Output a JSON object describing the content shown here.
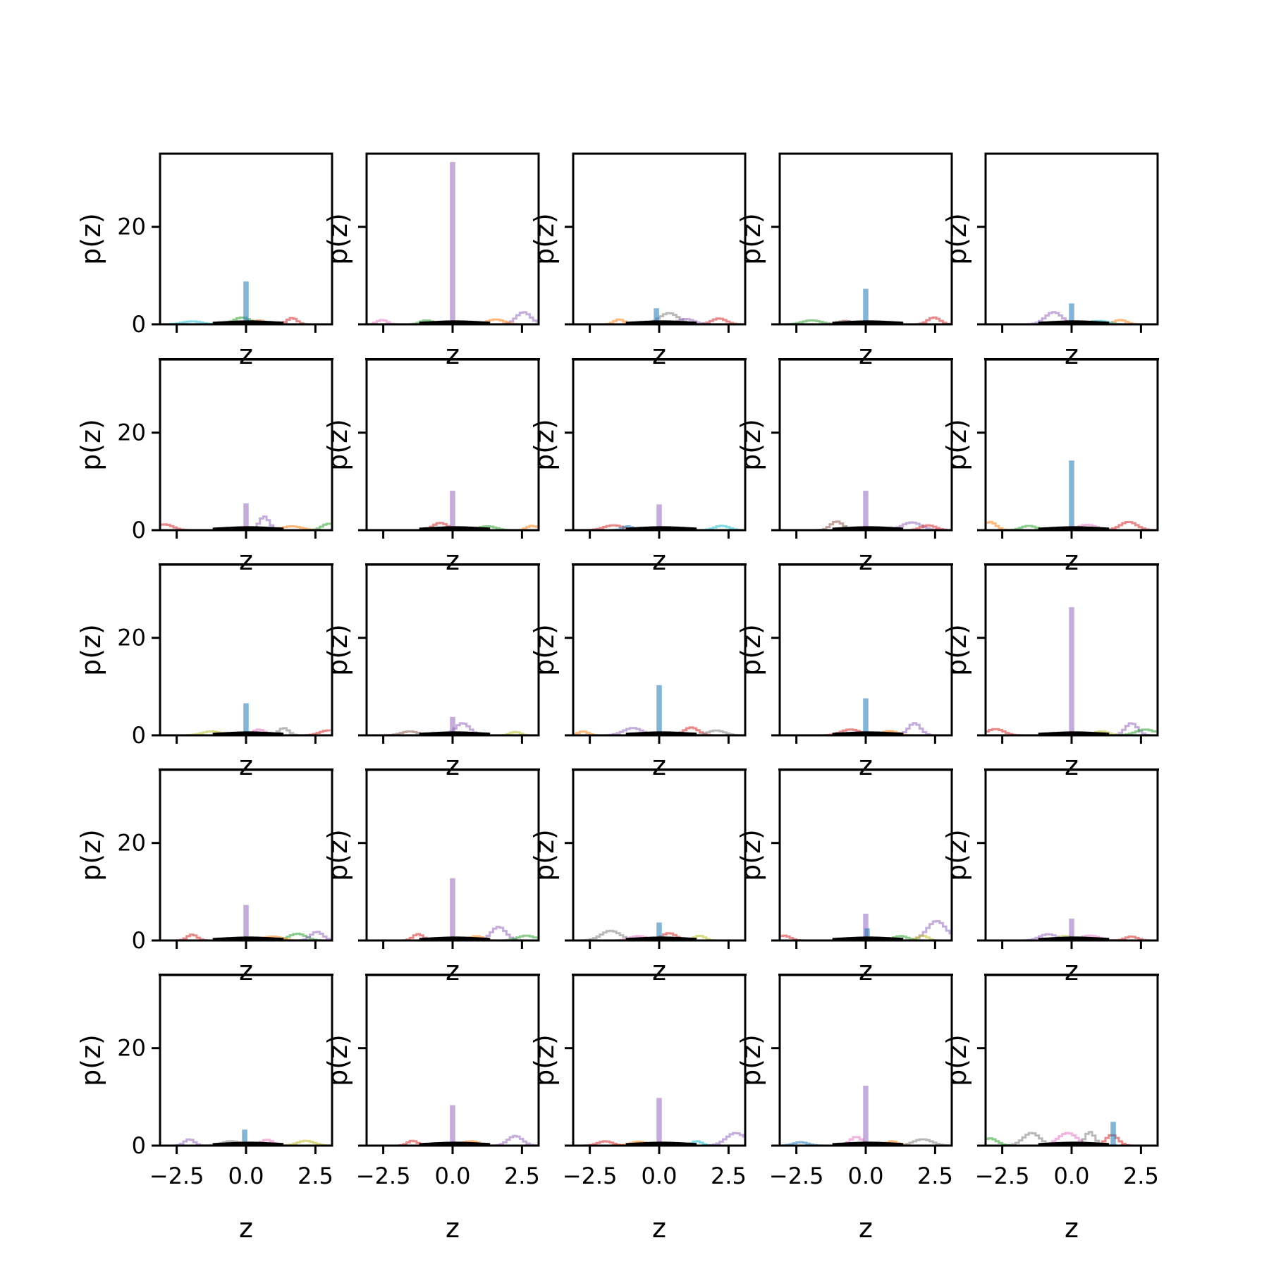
{
  "chart_data": {
    "type": "line",
    "layout": {
      "rows": 5,
      "cols": 5
    },
    "xlabel": "z",
    "ylabel": "p(z)",
    "xlim": [
      -3.1,
      3.1
    ],
    "ylim": [
      0,
      35
    ],
    "xticks": [
      -2.5,
      0.0,
      2.5
    ],
    "xtick_labels": [
      "−2.5",
      "0.0",
      "2.5"
    ],
    "yticks": [
      0,
      20
    ],
    "ytick_labels": [
      "0",
      "20"
    ],
    "colors": {
      "blue": "#1f77b4",
      "orange": "#ff7f0e",
      "green": "#2ca02c",
      "red": "#d62728",
      "purple": "#9467bd",
      "brown": "#8c564b",
      "pink": "#e377c2",
      "gray": "#7f7f7f",
      "olive": "#bcbd22",
      "cyan": "#17becf",
      "black": "#000000"
    },
    "panels": [
      {
        "spikes": [
          {
            "c": "blue",
            "x": 0.0,
            "h": 8.5
          }
        ],
        "bumps": [
          {
            "c": "red",
            "x": 1.6,
            "h": 1.3
          },
          {
            "c": "green",
            "x": -0.2,
            "h": 1.4
          },
          {
            "c": "orange",
            "x": 0.4,
            "h": 0.8
          },
          {
            "c": "cyan",
            "x": -2.0,
            "h": 0.6
          }
        ]
      },
      {
        "spikes": [
          {
            "c": "purple",
            "x": 0.0,
            "h": 33.0
          }
        ],
        "bumps": [
          {
            "c": "purple",
            "x": 2.5,
            "h": 2.5
          },
          {
            "c": "pink",
            "x": -2.6,
            "h": 0.9
          },
          {
            "c": "orange",
            "x": 1.5,
            "h": 1.0
          },
          {
            "c": "green",
            "x": -1.0,
            "h": 0.8
          }
        ]
      },
      {
        "spikes": [
          {
            "c": "blue",
            "x": -0.1,
            "h": 3.0
          }
        ],
        "bumps": [
          {
            "c": "gray",
            "x": 0.3,
            "h": 2.3
          },
          {
            "c": "red",
            "x": 2.1,
            "h": 1.2
          },
          {
            "c": "orange",
            "x": -1.5,
            "h": 1.0
          },
          {
            "c": "purple",
            "x": 0.9,
            "h": 1.1
          }
        ]
      },
      {
        "spikes": [
          {
            "c": "blue",
            "x": 0.0,
            "h": 7.0
          }
        ],
        "bumps": [
          {
            "c": "red",
            "x": 2.4,
            "h": 1.4
          },
          {
            "c": "green",
            "x": -2.0,
            "h": 0.8
          },
          {
            "c": "brown",
            "x": -0.8,
            "h": 0.7
          }
        ]
      },
      {
        "spikes": [
          {
            "c": "blue",
            "x": 0.0,
            "h": 4.0
          }
        ],
        "bumps": [
          {
            "c": "purple",
            "x": -0.7,
            "h": 2.5
          },
          {
            "c": "orange",
            "x": 1.7,
            "h": 0.9
          },
          {
            "c": "cyan",
            "x": 0.9,
            "h": 0.7
          }
        ]
      },
      {
        "spikes": [
          {
            "c": "purple",
            "x": 0.0,
            "h": 5.2
          }
        ],
        "bumps": [
          {
            "c": "purple",
            "x": 0.6,
            "h": 2.8
          },
          {
            "c": "red",
            "x": -3.0,
            "h": 1.2
          },
          {
            "c": "green",
            "x": 2.9,
            "h": 1.3
          },
          {
            "c": "orange",
            "x": 1.6,
            "h": 0.8
          }
        ]
      },
      {
        "spikes": [
          {
            "c": "purple",
            "x": 0.0,
            "h": 7.8
          }
        ],
        "bumps": [
          {
            "c": "red",
            "x": -0.5,
            "h": 1.5
          },
          {
            "c": "orange",
            "x": 2.8,
            "h": 0.9
          },
          {
            "c": "green",
            "x": 1.2,
            "h": 0.8
          }
        ]
      },
      {
        "spikes": [
          {
            "c": "purple",
            "x": 0.0,
            "h": 5.0
          }
        ],
        "bumps": [
          {
            "c": "red",
            "x": -1.7,
            "h": 1.0
          },
          {
            "c": "cyan",
            "x": 2.2,
            "h": 0.9
          },
          {
            "c": "blue",
            "x": -1.2,
            "h": 0.8
          }
        ]
      },
      {
        "spikes": [
          {
            "c": "purple",
            "x": 0.0,
            "h": 7.8
          }
        ],
        "bumps": [
          {
            "c": "brown",
            "x": -1.1,
            "h": 1.8
          },
          {
            "c": "purple",
            "x": 1.6,
            "h": 1.6
          },
          {
            "c": "red",
            "x": 2.2,
            "h": 1.0
          }
        ]
      },
      {
        "spikes": [
          {
            "c": "blue",
            "x": 0.0,
            "h": 14.0
          }
        ],
        "bumps": [
          {
            "c": "red",
            "x": 2.0,
            "h": 1.7
          },
          {
            "c": "orange",
            "x": -3.0,
            "h": 1.7
          },
          {
            "c": "pink",
            "x": 0.5,
            "h": 1.1
          },
          {
            "c": "green",
            "x": -1.6,
            "h": 0.9
          }
        ]
      },
      {
        "spikes": [
          {
            "c": "blue",
            "x": 0.0,
            "h": 6.3
          }
        ],
        "bumps": [
          {
            "c": "gray",
            "x": 1.3,
            "h": 1.5
          },
          {
            "c": "red",
            "x": 2.9,
            "h": 1.0
          },
          {
            "c": "pink",
            "x": 0.4,
            "h": 1.2
          },
          {
            "c": "olive",
            "x": -1.3,
            "h": 0.8
          }
        ]
      },
      {
        "spikes": [
          {
            "c": "purple",
            "x": 0.0,
            "h": 3.5
          }
        ],
        "bumps": [
          {
            "c": "purple",
            "x": 0.3,
            "h": 2.5
          },
          {
            "c": "olive",
            "x": 2.2,
            "h": 0.7
          },
          {
            "c": "brown",
            "x": -1.6,
            "h": 0.8
          }
        ]
      },
      {
        "spikes": [
          {
            "c": "blue",
            "x": 0.0,
            "h": 10.0
          }
        ],
        "bumps": [
          {
            "c": "purple",
            "x": -1.0,
            "h": 1.5
          },
          {
            "c": "red",
            "x": 1.1,
            "h": 1.6
          },
          {
            "c": "orange",
            "x": -2.8,
            "h": 0.8
          },
          {
            "c": "gray",
            "x": 2.0,
            "h": 1.0
          }
        ]
      },
      {
        "spikes": [
          {
            "c": "blue",
            "x": 0.0,
            "h": 7.3
          }
        ],
        "bumps": [
          {
            "c": "purple",
            "x": 1.7,
            "h": 2.5
          },
          {
            "c": "red",
            "x": -0.6,
            "h": 1.2
          },
          {
            "c": "orange",
            "x": 0.8,
            "h": 0.9
          }
        ]
      },
      {
        "spikes": [
          {
            "c": "purple",
            "x": 0.0,
            "h": 26.0
          }
        ],
        "bumps": [
          {
            "c": "red",
            "x": -2.8,
            "h": 1.3
          },
          {
            "c": "purple",
            "x": 2.1,
            "h": 2.5
          },
          {
            "c": "green",
            "x": 2.6,
            "h": 1.2
          },
          {
            "c": "olive",
            "x": 1.0,
            "h": 0.8
          }
        ]
      },
      {
        "spikes": [
          {
            "c": "purple",
            "x": 0.0,
            "h": 7.0
          }
        ],
        "bumps": [
          {
            "c": "red",
            "x": -2.0,
            "h": 1.2
          },
          {
            "c": "green",
            "x": 1.8,
            "h": 1.4
          },
          {
            "c": "purple",
            "x": 2.5,
            "h": 1.8
          },
          {
            "c": "orange",
            "x": 0.9,
            "h": 0.8
          }
        ]
      },
      {
        "spikes": [
          {
            "c": "purple",
            "x": 0.0,
            "h": 12.5
          }
        ],
        "bumps": [
          {
            "c": "purple",
            "x": 1.6,
            "h": 2.8
          },
          {
            "c": "red",
            "x": -1.3,
            "h": 1.3
          },
          {
            "c": "green",
            "x": 2.6,
            "h": 1.0
          },
          {
            "c": "orange",
            "x": 0.8,
            "h": 0.9
          }
        ]
      },
      {
        "spikes": [
          {
            "c": "blue",
            "x": 0.0,
            "h": 3.4
          }
        ],
        "bumps": [
          {
            "c": "gray",
            "x": -1.8,
            "h": 2.0
          },
          {
            "c": "red",
            "x": 0.3,
            "h": 1.5
          },
          {
            "c": "olive",
            "x": 1.4,
            "h": 1.0
          },
          {
            "c": "pink",
            "x": -0.8,
            "h": 0.9
          }
        ]
      },
      {
        "spikes": [
          {
            "c": "purple",
            "x": 0.0,
            "h": 5.2
          },
          {
            "c": "blue",
            "x": 0.05,
            "h": 2.2
          }
        ],
        "bumps": [
          {
            "c": "red",
            "x": -3.0,
            "h": 1.0
          },
          {
            "c": "purple",
            "x": 2.5,
            "h": 4.0
          },
          {
            "c": "green",
            "x": 1.2,
            "h": 0.9
          },
          {
            "c": "olive",
            "x": 2.0,
            "h": 1.0
          }
        ]
      },
      {
        "spikes": [
          {
            "c": "purple",
            "x": 0.0,
            "h": 4.2
          }
        ],
        "bumps": [
          {
            "c": "purple",
            "x": -0.9,
            "h": 1.3
          },
          {
            "c": "red",
            "x": 2.1,
            "h": 0.8
          },
          {
            "c": "pink",
            "x": 0.6,
            "h": 1.0
          },
          {
            "c": "olive",
            "x": -0.3,
            "h": 0.9
          }
        ]
      },
      {
        "spikes": [
          {
            "c": "blue",
            "x": -0.05,
            "h": 3.0
          }
        ],
        "bumps": [
          {
            "c": "purple",
            "x": -2.1,
            "h": 1.3
          },
          {
            "c": "olive",
            "x": 2.1,
            "h": 1.0
          },
          {
            "c": "pink",
            "x": 0.7,
            "h": 1.2
          },
          {
            "c": "gray",
            "x": -0.6,
            "h": 0.9
          }
        ]
      },
      {
        "spikes": [
          {
            "c": "purple",
            "x": 0.0,
            "h": 8.0
          }
        ],
        "bumps": [
          {
            "c": "purple",
            "x": 2.2,
            "h": 2.0
          },
          {
            "c": "red",
            "x": -1.5,
            "h": 1.0
          },
          {
            "c": "orange",
            "x": 0.6,
            "h": 0.9
          }
        ]
      },
      {
        "spikes": [
          {
            "c": "purple",
            "x": 0.0,
            "h": 9.5
          }
        ],
        "bumps": [
          {
            "c": "purple",
            "x": 2.7,
            "h": 2.6
          },
          {
            "c": "red",
            "x": -2.0,
            "h": 0.9
          },
          {
            "c": "cyan",
            "x": 1.3,
            "h": 0.9
          },
          {
            "c": "orange",
            "x": -0.8,
            "h": 0.8
          }
        ]
      },
      {
        "spikes": [
          {
            "c": "purple",
            "x": 0.0,
            "h": 12.0
          }
        ],
        "bumps": [
          {
            "c": "pink",
            "x": -0.4,
            "h": 1.8
          },
          {
            "c": "gray",
            "x": 2.0,
            "h": 1.3
          },
          {
            "c": "blue",
            "x": -2.4,
            "h": 0.7
          },
          {
            "c": "orange",
            "x": 0.9,
            "h": 0.9
          }
        ]
      },
      {
        "spikes": [
          {
            "c": "blue",
            "x": 1.5,
            "h": 4.6
          }
        ],
        "bumps": [
          {
            "c": "gray",
            "x": -1.5,
            "h": 2.6
          },
          {
            "c": "red",
            "x": 1.4,
            "h": 2.2
          },
          {
            "c": "pink",
            "x": -0.2,
            "h": 2.6
          },
          {
            "c": "green",
            "x": -3.0,
            "h": 1.5
          },
          {
            "c": "gray",
            "x": 0.6,
            "h": 2.8
          }
        ]
      }
    ]
  }
}
